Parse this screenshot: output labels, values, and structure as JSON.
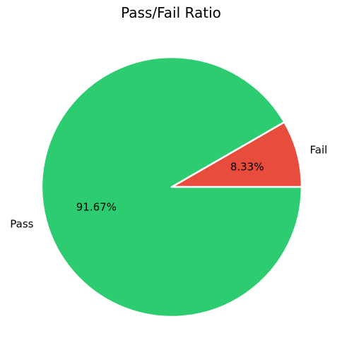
{
  "chart_data": {
    "type": "pie",
    "title": "Pass/Fail Ratio",
    "start_angle": 0,
    "slices": [
      {
        "label": "Fail",
        "value": 8.33,
        "pct_label": "8.33%",
        "color": "#e74c3c"
      },
      {
        "label": "Pass",
        "value": 91.67,
        "pct_label": "91.67%",
        "color": "#2ecc71"
      }
    ],
    "edge_color": "#ffffff"
  }
}
